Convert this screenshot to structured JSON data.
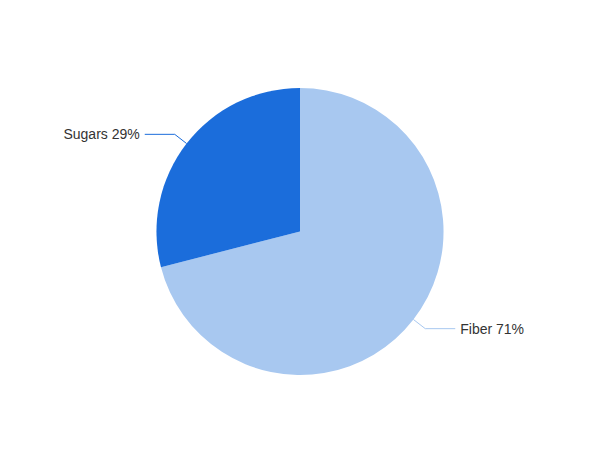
{
  "chart_data": {
    "type": "pie",
    "values": [
      71,
      29
    ],
    "value_labels": [
      "Fiber 71%",
      "Sugars 29%"
    ],
    "data_labels": true,
    "colors": [
      "#a8c8f0",
      "#1b6ddb"
    ]
  }
}
